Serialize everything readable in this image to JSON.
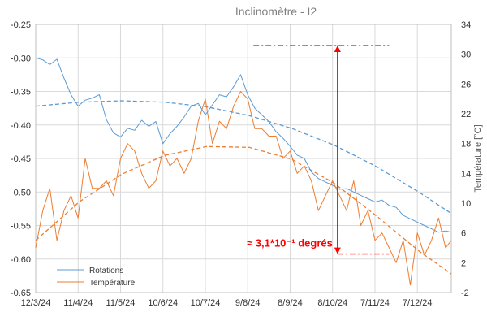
{
  "chart_data": {
    "type": "line",
    "title": "Inclinomètre - I2",
    "ylabel": "",
    "y2label": "Température [°C]",
    "x_labels": [
      "12/3/24",
      "11/4/24",
      "11/5/24",
      "10/6/24",
      "10/7/24",
      "9/8/24",
      "8/9/24",
      "8/10/24",
      "7/11/24",
      "7/12/24"
    ],
    "x_range": [
      "2024-03-12",
      "2024-12-31"
    ],
    "ylim": [
      -0.65,
      -0.25
    ],
    "yticks": [
      "-0.25",
      "-0.30",
      "-0.35",
      "-0.40",
      "-0.45",
      "-0.50",
      "-0.55",
      "-0.60",
      "-0.65"
    ],
    "y2lim": [
      -2,
      34
    ],
    "y2ticks": [
      "34",
      "30",
      "26",
      "22",
      "18",
      "14",
      "10",
      "6",
      "2",
      "-2"
    ],
    "grid": true,
    "legend_position": "bottom-left",
    "series": [
      {
        "name": "Rotations",
        "axis": "left",
        "color": "#5b9bd5",
        "points": [
          [
            "2024-03-12",
            -0.3
          ],
          [
            "2024-03-17",
            -0.303
          ],
          [
            "2024-03-22",
            -0.31
          ],
          [
            "2024-03-27",
            -0.302
          ],
          [
            "2024-04-01",
            -0.33
          ],
          [
            "2024-04-06",
            -0.355
          ],
          [
            "2024-04-11",
            -0.372
          ],
          [
            "2024-04-16",
            -0.363
          ],
          [
            "2024-04-21",
            -0.36
          ],
          [
            "2024-04-26",
            -0.355
          ],
          [
            "2024-05-01",
            -0.392
          ],
          [
            "2024-05-06",
            -0.412
          ],
          [
            "2024-05-11",
            -0.418
          ],
          [
            "2024-05-16",
            -0.405
          ],
          [
            "2024-05-21",
            -0.408
          ],
          [
            "2024-05-26",
            -0.393
          ],
          [
            "2024-05-31",
            -0.402
          ],
          [
            "2024-06-05",
            -0.395
          ],
          [
            "2024-06-10",
            -0.428
          ],
          [
            "2024-06-15",
            -0.413
          ],
          [
            "2024-06-20",
            -0.402
          ],
          [
            "2024-06-25",
            -0.388
          ],
          [
            "2024-06-30",
            -0.372
          ],
          [
            "2024-07-05",
            -0.368
          ],
          [
            "2024-07-10",
            -0.385
          ],
          [
            "2024-07-15",
            -0.37
          ],
          [
            "2024-07-20",
            -0.355
          ],
          [
            "2024-07-25",
            -0.358
          ],
          [
            "2024-07-30",
            -0.343
          ],
          [
            "2024-08-04",
            -0.325
          ],
          [
            "2024-08-09",
            -0.355
          ],
          [
            "2024-08-14",
            -0.375
          ],
          [
            "2024-08-19",
            -0.385
          ],
          [
            "2024-08-24",
            -0.395
          ],
          [
            "2024-08-29",
            -0.41
          ],
          [
            "2024-09-03",
            -0.42
          ],
          [
            "2024-09-08",
            -0.432
          ],
          [
            "2024-09-13",
            -0.445
          ],
          [
            "2024-09-18",
            -0.45
          ],
          [
            "2024-09-23",
            -0.47
          ],
          [
            "2024-09-28",
            -0.48
          ],
          [
            "2024-10-03",
            -0.485
          ],
          [
            "2024-10-08",
            -0.49
          ],
          [
            "2024-10-13",
            -0.496
          ],
          [
            "2024-10-18",
            -0.495
          ],
          [
            "2024-10-23",
            -0.5
          ],
          [
            "2024-10-28",
            -0.505
          ],
          [
            "2024-11-02",
            -0.51
          ],
          [
            "2024-11-07",
            -0.515
          ],
          [
            "2024-11-12",
            -0.512
          ],
          [
            "2024-11-17",
            -0.52
          ],
          [
            "2024-11-22",
            -0.523
          ],
          [
            "2024-11-27",
            -0.535
          ],
          [
            "2024-12-02",
            -0.54
          ],
          [
            "2024-12-07",
            -0.545
          ],
          [
            "2024-12-12",
            -0.55
          ],
          [
            "2024-12-17",
            -0.555
          ],
          [
            "2024-12-22",
            -0.56
          ],
          [
            "2024-12-27",
            -0.558
          ],
          [
            "2024-12-31",
            -0.56
          ]
        ]
      },
      {
        "name": "Température",
        "axis": "right",
        "color": "#ed7d31",
        "points": [
          [
            "2024-03-12",
            4
          ],
          [
            "2024-03-17",
            9
          ],
          [
            "2024-03-22",
            12
          ],
          [
            "2024-03-27",
            5
          ],
          [
            "2024-04-01",
            9
          ],
          [
            "2024-04-06",
            11
          ],
          [
            "2024-04-11",
            8
          ],
          [
            "2024-04-16",
            16
          ],
          [
            "2024-04-21",
            12
          ],
          [
            "2024-04-26",
            12
          ],
          [
            "2024-05-01",
            13
          ],
          [
            "2024-05-06",
            11
          ],
          [
            "2024-05-11",
            16
          ],
          [
            "2024-05-16",
            18
          ],
          [
            "2024-05-21",
            17
          ],
          [
            "2024-05-26",
            14
          ],
          [
            "2024-05-31",
            12
          ],
          [
            "2024-06-05",
            13
          ],
          [
            "2024-06-10",
            17
          ],
          [
            "2024-06-15",
            15
          ],
          [
            "2024-06-20",
            16
          ],
          [
            "2024-06-25",
            14
          ],
          [
            "2024-06-30",
            16
          ],
          [
            "2024-07-05",
            21
          ],
          [
            "2024-07-10",
            24
          ],
          [
            "2024-07-15",
            18
          ],
          [
            "2024-07-20",
            21
          ],
          [
            "2024-07-25",
            20
          ],
          [
            "2024-07-30",
            23
          ],
          [
            "2024-08-04",
            25
          ],
          [
            "2024-08-09",
            24
          ],
          [
            "2024-08-14",
            20
          ],
          [
            "2024-08-19",
            20
          ],
          [
            "2024-08-24",
            19
          ],
          [
            "2024-08-29",
            19
          ],
          [
            "2024-09-03",
            16
          ],
          [
            "2024-09-08",
            17
          ],
          [
            "2024-09-13",
            14
          ],
          [
            "2024-09-18",
            15
          ],
          [
            "2024-09-23",
            13
          ],
          [
            "2024-09-28",
            9
          ],
          [
            "2024-10-03",
            11
          ],
          [
            "2024-10-08",
            13
          ],
          [
            "2024-10-13",
            11
          ],
          [
            "2024-10-18",
            9
          ],
          [
            "2024-10-23",
            13
          ],
          [
            "2024-10-28",
            7
          ],
          [
            "2024-11-02",
            9
          ],
          [
            "2024-11-07",
            5
          ],
          [
            "2024-11-12",
            6
          ],
          [
            "2024-11-17",
            4
          ],
          [
            "2024-11-22",
            2
          ],
          [
            "2024-11-27",
            5
          ],
          [
            "2024-12-02",
            -1
          ],
          [
            "2024-12-07",
            6
          ],
          [
            "2024-12-12",
            3
          ],
          [
            "2024-12-17",
            5
          ],
          [
            "2024-12-22",
            8
          ],
          [
            "2024-12-27",
            4
          ],
          [
            "2024-12-31",
            5
          ]
        ]
      }
    ],
    "trendlines": [
      {
        "of": "Rotations",
        "axis": "left",
        "color": "#5b9bd5",
        "style": "dashed",
        "points": [
          [
            "2024-03-12",
            -0.372
          ],
          [
            "2024-04-12",
            -0.366
          ],
          [
            "2024-05-12",
            -0.364
          ],
          [
            "2024-06-11",
            -0.366
          ],
          [
            "2024-07-11",
            -0.373
          ],
          [
            "2024-08-10",
            -0.386
          ],
          [
            "2024-09-09",
            -0.405
          ],
          [
            "2024-10-09",
            -0.43
          ],
          [
            "2024-11-08",
            -0.462
          ],
          [
            "2024-12-08",
            -0.5
          ],
          [
            "2024-12-31",
            -0.532
          ]
        ]
      },
      {
        "of": "Température",
        "axis": "right",
        "color": "#ed7d31",
        "style": "dashed",
        "points": [
          [
            "2024-03-12",
            5.0
          ],
          [
            "2024-04-12",
            10.2
          ],
          [
            "2024-05-12",
            13.9
          ],
          [
            "2024-06-11",
            16.4
          ],
          [
            "2024-07-11",
            17.6
          ],
          [
            "2024-08-10",
            17.5
          ],
          [
            "2024-09-09",
            15.9
          ],
          [
            "2024-10-09",
            12.7
          ],
          [
            "2024-11-08",
            8.3
          ],
          [
            "2024-12-08",
            3.6
          ],
          [
            "2024-12-31",
            0.5
          ]
        ]
      }
    ],
    "annotation": {
      "text": "≈ 3,1*10⁻¹ degrés",
      "color": "#ff0000",
      "top_value": -0.2815,
      "bottom_value": -0.5925,
      "x_from": "2024-08-13",
      "x_to": "2024-11-17"
    }
  }
}
